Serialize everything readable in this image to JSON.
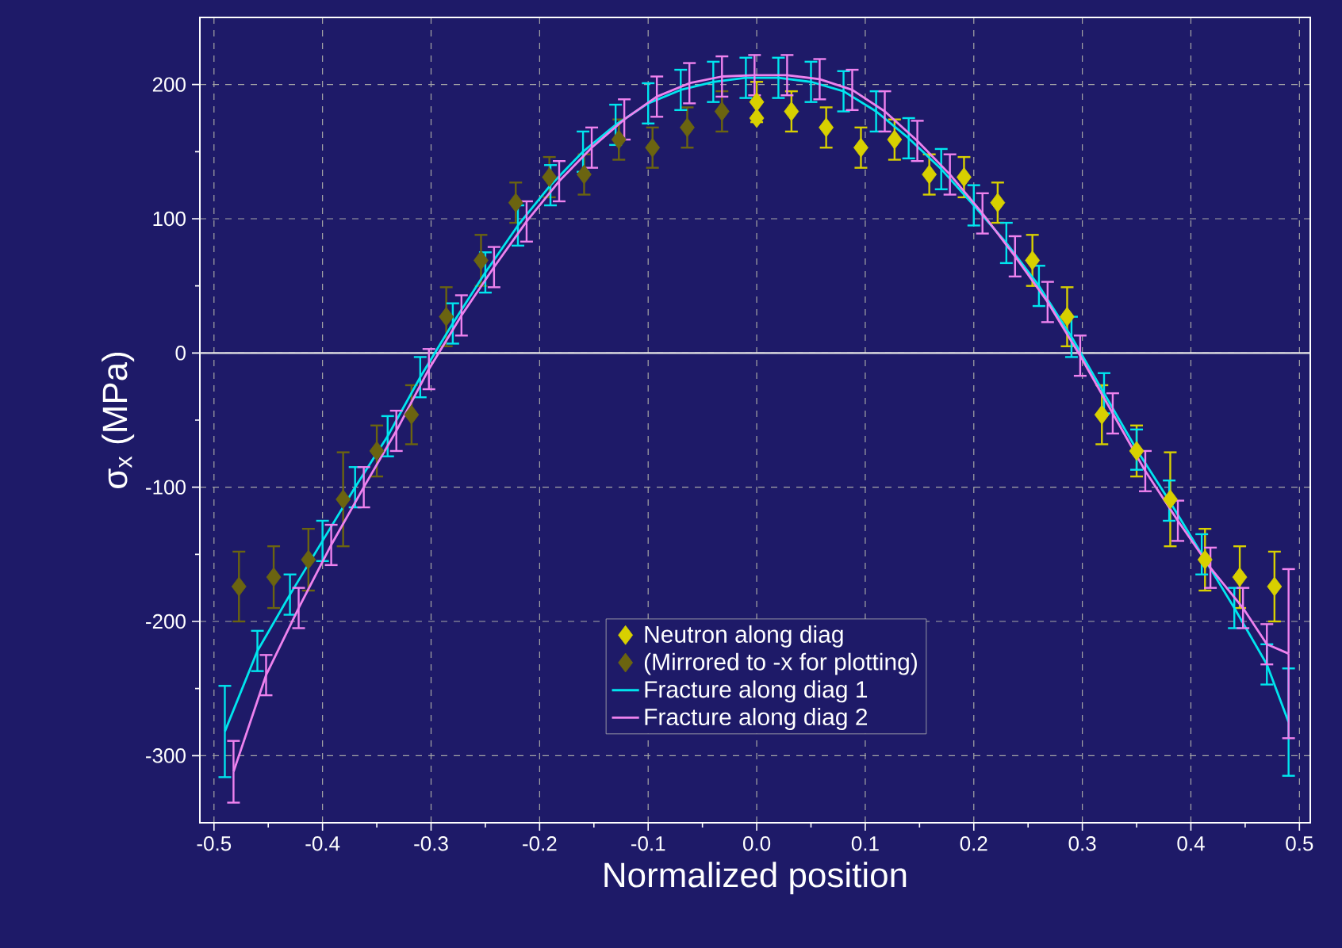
{
  "chart_data": {
    "type": "scatter",
    "xlabel": "Normalized position",
    "ylabel": "σ$_{x}$ (MPa)",
    "xlim": [
      -0.513,
      0.51
    ],
    "ylim": [
      -350,
      250
    ],
    "xticks": [
      -0.5,
      {
        "value": -0.45,
        "label": null
      },
      -0.4,
      {
        "value": -0.35,
        "label": null
      },
      -0.3,
      {
        "value": -0.25,
        "label": null
      },
      -0.2,
      {
        "value": -0.15,
        "label": null
      },
      -0.1,
      {
        "value": -0.05,
        "label": null
      },
      {
        "value": 0,
        "label": "0.0"
      },
      {
        "value": 0.05,
        "label": null
      },
      0.1,
      {
        "value": 0.15,
        "label": null
      },
      0.2,
      {
        "value": 0.25,
        "label": null
      },
      0.3,
      {
        "value": 0.35,
        "label": null
      },
      0.4,
      {
        "value": 0.45,
        "label": null
      },
      0.5
    ],
    "yticks": [
      -300,
      {
        "value": -250,
        "label": null
      },
      -200,
      {
        "value": -150,
        "label": null
      },
      -100,
      {
        "value": -50,
        "label": null
      },
      0,
      {
        "value": 50,
        "label": null
      },
      100,
      {
        "value": 150,
        "label": null
      },
      200
    ],
    "grid": true,
    "legend": "bottom",
    "marker": "diamond",
    "ref_lines": [
      {
        "axis": "y",
        "value": 0,
        "color": "#e8e8e8",
        "line_style": "solid"
      }
    ],
    "series": [
      {
        "name": "Neutron along diag",
        "color": "#d8d000",
        "x": [
          0,
          0,
          0.032,
          0.064,
          0.096,
          0.127,
          0.159,
          0.191,
          0.222,
          0.254,
          0.286,
          0.318,
          0.35,
          0.381,
          0.413,
          0.445,
          0.477
        ],
        "values": [
          187,
          175,
          180,
          168,
          153,
          159,
          133,
          131,
          112,
          69,
          27,
          -46,
          -73,
          -109,
          -154,
          -167,
          -174
        ],
        "errors": [
          15,
          null,
          15,
          15,
          15,
          15,
          15,
          15,
          15,
          19,
          22,
          22,
          19,
          35,
          23,
          23,
          26
        ]
      },
      {
        "name": "(Mirrored to -x for plotting)",
        "color": "#6b6410",
        "x": [
          -0.032,
          -0.064,
          -0.096,
          -0.127,
          -0.159,
          -0.191,
          -0.222,
          -0.254,
          -0.286,
          -0.318,
          -0.35,
          -0.381,
          -0.413,
          -0.445,
          -0.477
        ],
        "values": [
          180,
          168,
          153,
          159,
          133,
          131,
          112,
          69,
          27,
          -46,
          -73,
          -109,
          -154,
          -167,
          -174
        ],
        "errors": [
          15,
          15,
          15,
          15,
          15,
          15,
          15,
          19,
          22,
          22,
          19,
          35,
          23,
          23,
          26
        ]
      },
      {
        "name": "Fracture along diag 1",
        "type": "line",
        "marker": "none",
        "color": "#00e5ee",
        "x": [
          -0.49,
          -0.46,
          -0.43,
          -0.4,
          -0.37,
          -0.34,
          -0.31,
          -0.28,
          -0.25,
          -0.22,
          -0.19,
          -0.16,
          -0.13,
          -0.1,
          -0.07,
          -0.04,
          -0.01,
          0.02,
          0.05,
          0.08,
          0.11,
          0.14,
          0.17,
          0.2,
          0.23,
          0.26,
          0.29,
          0.32,
          0.35,
          0.38,
          0.41,
          0.44,
          0.47,
          0.49
        ],
        "values": [
          -282,
          -222,
          -180,
          -140,
          -100,
          -62,
          -18,
          22,
          60,
          95,
          125,
          150,
          170,
          186,
          196,
          202,
          205,
          205,
          202,
          195,
          180,
          160,
          137,
          110,
          82,
          50,
          12,
          -30,
          -72,
          -110,
          -150,
          -190,
          -232,
          -275
        ],
        "errors": [
          34,
          15,
          15,
          15,
          15,
          15,
          15,
          15,
          15,
          15,
          15,
          15,
          15,
          15,
          15,
          15,
          15,
          15,
          15,
          15,
          15,
          15,
          15,
          15,
          15,
          15,
          15,
          15,
          15,
          15,
          15,
          15,
          15,
          40
        ]
      },
      {
        "name": "Fracture along diag 2",
        "type": "line",
        "marker": "none",
        "color": "#ee82ee",
        "x": [
          -0.482,
          -0.452,
          -0.422,
          -0.392,
          -0.362,
          -0.332,
          -0.302,
          -0.272,
          -0.242,
          -0.212,
          -0.182,
          -0.152,
          -0.122,
          -0.092,
          -0.062,
          -0.032,
          -0.002,
          0.028,
          0.058,
          0.088,
          0.118,
          0.148,
          0.178,
          0.208,
          0.238,
          0.268,
          0.298,
          0.328,
          0.358,
          0.388,
          0.418,
          0.448,
          0.47,
          0.49
        ],
        "values": [
          -312,
          -240,
          -190,
          -143,
          -100,
          -58,
          -12,
          28,
          64,
          98,
          128,
          153,
          174,
          191,
          201,
          206,
          207,
          207,
          204,
          196,
          180,
          158,
          133,
          104,
          72,
          38,
          -2,
          -45,
          -88,
          -125,
          -160,
          -190,
          -217,
          -224
        ],
        "errors": [
          23,
          15,
          15,
          15,
          15,
          15,
          15,
          15,
          15,
          15,
          15,
          15,
          15,
          15,
          15,
          15,
          15,
          15,
          15,
          15,
          15,
          15,
          15,
          15,
          15,
          15,
          15,
          15,
          15,
          15,
          15,
          15,
          15,
          63
        ]
      }
    ]
  }
}
